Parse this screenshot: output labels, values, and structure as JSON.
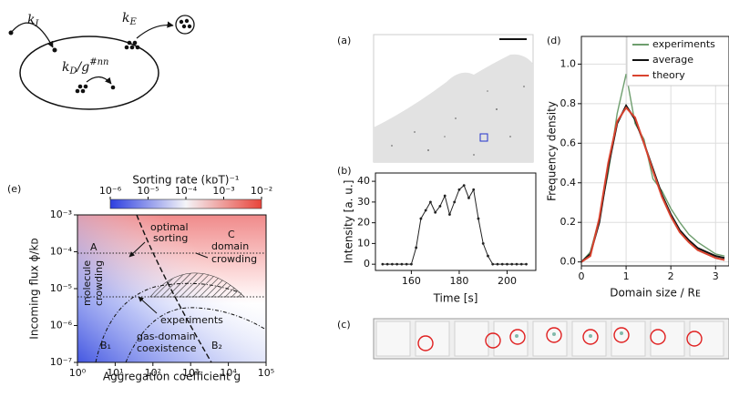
{
  "schematic": {
    "k_in": {
      "symbol": "k",
      "sub": "I"
    },
    "k_out": {
      "symbol": "k",
      "sub": "E"
    },
    "k_diff": {
      "symbol": "k",
      "sub": "D",
      "divider": "/g",
      "sup": "#nn"
    }
  },
  "panel_labels": {
    "a": "(a)",
    "b": "(b)",
    "c": "(c)",
    "d": "(d)",
    "e": "(e)"
  },
  "chart_data": [
    {
      "type": "phase-diagram",
      "xlabel": "Aggregation coefficient g",
      "ylabel": "Incoming flux ϕ/kᴅ",
      "xlog": true,
      "ylog": true,
      "xlim": [
        1,
        100000
      ],
      "ylim": [
        1e-07,
        0.001
      ],
      "xticks": [
        {
          "value": 1,
          "label": "10⁰"
        },
        {
          "value": 10,
          "label": "10¹"
        },
        {
          "value": 100,
          "label": "10²"
        },
        {
          "value": 1000,
          "label": "10³"
        },
        {
          "value": 10000,
          "label": "10⁴"
        },
        {
          "value": 100000,
          "label": "10⁵"
        }
      ],
      "yticks": [
        {
          "value": 1e-07,
          "label": "10⁻⁷"
        },
        {
          "value": 1e-06,
          "label": "10⁻⁶"
        },
        {
          "value": 1e-05,
          "label": "10⁻⁵"
        },
        {
          "value": 0.0001,
          "label": "10⁻⁴"
        },
        {
          "value": 0.001,
          "label": "10⁻³"
        }
      ],
      "colorbar": {
        "label": "Sorting rate  (kᴅT)⁻¹",
        "lim": [
          1e-06,
          0.01
        ],
        "ticks": [
          {
            "value": 1e-06,
            "label": "10⁻⁶"
          },
          {
            "value": 1e-05,
            "label": "10⁻⁵"
          },
          {
            "value": 0.0001,
            "label": "10⁻⁴"
          },
          {
            "value": 0.001,
            "label": "10⁻³"
          },
          {
            "value": 0.01,
            "label": "10⁻²"
          }
        ]
      },
      "annotations": [
        "optimal",
        "sorting",
        "A",
        "C",
        "domain",
        "crowding",
        "molecule",
        "crowding",
        "experiments",
        "B₁",
        "gas-domain",
        "coexistence",
        "B₂"
      ]
    },
    {
      "type": "line",
      "xlabel": "Time [s]",
      "ylabel": "Intensity [a. u.]",
      "color": "#222222",
      "markers": true,
      "xlim": [
        145,
        212
      ],
      "ylim": [
        -3,
        44
      ],
      "xticks": [
        160,
        180,
        200
      ],
      "yticks": [
        0,
        10,
        20,
        30,
        40
      ],
      "x": [
        148,
        150,
        152,
        154,
        156,
        158,
        160,
        162,
        164,
        166,
        168,
        170,
        172,
        174,
        176,
        178,
        180,
        182,
        184,
        186,
        188,
        190,
        192,
        194,
        196,
        198,
        200,
        202,
        204,
        206,
        208
      ],
      "values": [
        0,
        0,
        0,
        0,
        0,
        0,
        0,
        8,
        22,
        26,
        30,
        25,
        28,
        33,
        24,
        30,
        36,
        38,
        32,
        36,
        22,
        10,
        4,
        0,
        0,
        0,
        0,
        0,
        0,
        0,
        0
      ]
    },
    {
      "type": "line",
      "xlabel": "Domain size / Rᴇ",
      "ylabel": "Frequency density",
      "grid": true,
      "legend": "upper right",
      "xlim": [
        0,
        3.3
      ],
      "ylim": [
        -0.02,
        1.14
      ],
      "xticks": [
        0,
        1,
        2,
        3
      ],
      "yticks": [
        {
          "value": 0,
          "label": "0.0"
        },
        0.2,
        0.4,
        0.6,
        0.8,
        {
          "value": 1,
          "label": "1.0"
        }
      ],
      "x": [
        0,
        0.2,
        0.4,
        0.6,
        0.8,
        1.0,
        1.2,
        1.4,
        1.6,
        1.8,
        2.0,
        2.2,
        2.4,
        2.6,
        2.8,
        3.0,
        3.2
      ],
      "series": [
        {
          "name": "experiments",
          "color": "#6e9e6e",
          "values": [
            0,
            0.05,
            0.22,
            0.45,
            0.75,
            0.95,
            0.7,
            0.62,
            0.42,
            0.36,
            0.27,
            0.2,
            0.14,
            0.1,
            0.07,
            0.04,
            0.03
          ]
        },
        {
          "name": "average",
          "color": "#111111",
          "values": [
            0,
            0.04,
            0.2,
            0.48,
            0.7,
            0.79,
            0.72,
            0.6,
            0.47,
            0.34,
            0.24,
            0.16,
            0.11,
            0.07,
            0.05,
            0.03,
            0.02
          ]
        },
        {
          "name": "theory",
          "color": "#d9432f",
          "values": [
            0,
            0.03,
            0.22,
            0.5,
            0.71,
            0.78,
            0.73,
            0.6,
            0.46,
            0.33,
            0.23,
            0.15,
            0.1,
            0.06,
            0.04,
            0.02,
            0.01
          ]
        }
      ]
    }
  ]
}
